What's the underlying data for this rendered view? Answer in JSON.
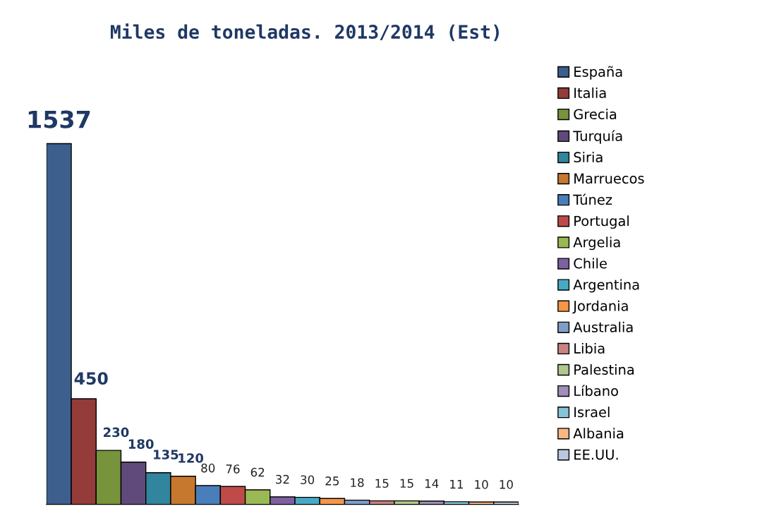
{
  "chart_data": {
    "type": "bar",
    "title": "Miles de toneladas. 2013/2014 (Est)",
    "categories": [
      null
    ],
    "series": [
      {
        "name": "España",
        "color": "#3c5f8e",
        "values": [
          1537
        ]
      },
      {
        "name": "Italia",
        "color": "#943c39",
        "values": [
          450
        ]
      },
      {
        "name": "Grecia",
        "color": "#77933c",
        "values": [
          230
        ]
      },
      {
        "name": "Turquía",
        "color": "#604a7b",
        "values": [
          180
        ]
      },
      {
        "name": "Siria",
        "color": "#31859c",
        "values": [
          135
        ]
      },
      {
        "name": "Marruecos",
        "color": "#c7782f",
        "values": [
          120
        ]
      },
      {
        "name": "Túnez",
        "color": "#4a7ebb",
        "values": [
          80
        ]
      },
      {
        "name": "Portugal",
        "color": "#be4b48",
        "values": [
          76
        ]
      },
      {
        "name": "Argelia",
        "color": "#98b954",
        "values": [
          62
        ]
      },
      {
        "name": "Chile",
        "color": "#7d60a0",
        "values": [
          32
        ]
      },
      {
        "name": "Argentina",
        "color": "#46aac5",
        "values": [
          30
        ]
      },
      {
        "name": "Jordania",
        "color": "#f79646",
        "values": [
          25
        ]
      },
      {
        "name": "Australia",
        "color": "#7f9dc8",
        "values": [
          18
        ]
      },
      {
        "name": "Libia",
        "color": "#c98482",
        "values": [
          15
        ]
      },
      {
        "name": "Palestina",
        "color": "#b0c98b",
        "values": [
          15
        ]
      },
      {
        "name": "Líbano",
        "color": "#a08fb8",
        "values": [
          14
        ]
      },
      {
        "name": "Israel",
        "color": "#86c3d6",
        "values": [
          11
        ]
      },
      {
        "name": "Albania",
        "color": "#f9b783",
        "values": [
          10
        ]
      },
      {
        "name": "EE.UU.",
        "color": "#b9c8e1",
        "values": [
          10
        ]
      }
    ],
    "data_labels": true,
    "legend": "right",
    "grid": false
  }
}
